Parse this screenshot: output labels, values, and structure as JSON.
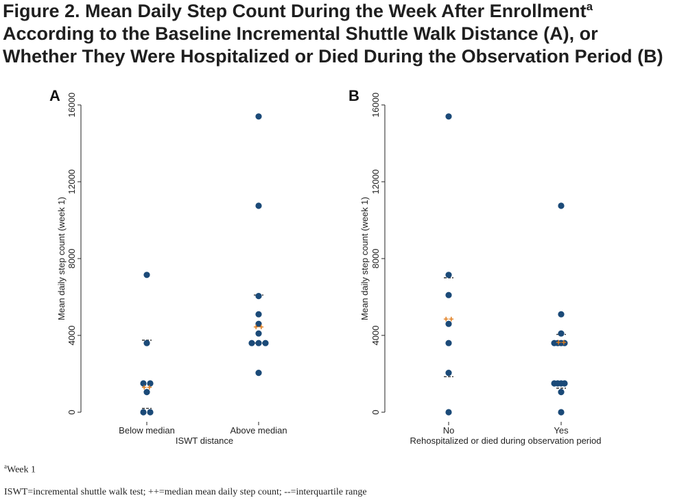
{
  "figure": {
    "title_line1": "Figure 2. Mean Daily Step Count During the Week After Enrollment",
    "title_sup": "a",
    "title_line2": "According to the Baseline Incremental Shuttle Walk Distance (A), or",
    "title_line3": "Whether They Were Hospitalized or Died During the Observation Period (B)"
  },
  "chart_data": [
    {
      "type": "scatter",
      "panel": "A",
      "xlabel": "ISWT distance",
      "ylabel": "Mean daily step count (week 1)",
      "ylim": [
        0,
        16000
      ],
      "yticks": [
        "0",
        "4000",
        "8000",
        "12000",
        "16000"
      ],
      "categories": [
        "Below median",
        "Above median"
      ],
      "points": [
        {
          "cat": 0,
          "y": 7150,
          "dx": 0
        },
        {
          "cat": 0,
          "y": 3600,
          "dx": 0
        },
        {
          "cat": 0,
          "y": 1500,
          "dx": -1
        },
        {
          "cat": 0,
          "y": 1500,
          "dx": 1
        },
        {
          "cat": 0,
          "y": 1050,
          "dx": 0
        },
        {
          "cat": 0,
          "y": 0,
          "dx": -1
        },
        {
          "cat": 0,
          "y": 0,
          "dx": 1
        },
        {
          "cat": 1,
          "y": 15400,
          "dx": 0
        },
        {
          "cat": 1,
          "y": 10750,
          "dx": 0
        },
        {
          "cat": 1,
          "y": 6050,
          "dx": 0
        },
        {
          "cat": 1,
          "y": 5100,
          "dx": 0
        },
        {
          "cat": 1,
          "y": 4600,
          "dx": 0
        },
        {
          "cat": 1,
          "y": 4100,
          "dx": 0
        },
        {
          "cat": 1,
          "y": 3600,
          "dx": -2
        },
        {
          "cat": 1,
          "y": 3600,
          "dx": 0
        },
        {
          "cat": 1,
          "y": 3600,
          "dx": 2
        },
        {
          "cat": 1,
          "y": 2050,
          "dx": 0
        }
      ],
      "medians": [
        1300,
        4450
      ],
      "iqr": [
        [
          200,
          3750
        ],
        [
          3600,
          6100
        ]
      ]
    },
    {
      "type": "scatter",
      "panel": "B",
      "xlabel": "Rehospitalized or died during observation period",
      "ylabel": "Mean daily step count (week 1)",
      "ylim": [
        0,
        16000
      ],
      "yticks": [
        "0",
        "4000",
        "8000",
        "12000",
        "16000"
      ],
      "categories": [
        "No",
        "Yes"
      ],
      "points": [
        {
          "cat": 0,
          "y": 15400,
          "dx": 0
        },
        {
          "cat": 0,
          "y": 7150,
          "dx": 0
        },
        {
          "cat": 0,
          "y": 6100,
          "dx": 0
        },
        {
          "cat": 0,
          "y": 4600,
          "dx": 0
        },
        {
          "cat": 0,
          "y": 3600,
          "dx": 0
        },
        {
          "cat": 0,
          "y": 2050,
          "dx": 0
        },
        {
          "cat": 0,
          "y": 0,
          "dx": 0
        },
        {
          "cat": 1,
          "y": 10750,
          "dx": 0
        },
        {
          "cat": 1,
          "y": 5100,
          "dx": 0
        },
        {
          "cat": 1,
          "y": 4100,
          "dx": 0
        },
        {
          "cat": 1,
          "y": 3600,
          "dx": -2
        },
        {
          "cat": 1,
          "y": 3600,
          "dx": -1
        },
        {
          "cat": 1,
          "y": 3600,
          "dx": 0
        },
        {
          "cat": 1,
          "y": 3600,
          "dx": 1
        },
        {
          "cat": 1,
          "y": 1500,
          "dx": -2
        },
        {
          "cat": 1,
          "y": 1500,
          "dx": -1
        },
        {
          "cat": 1,
          "y": 1500,
          "dx": 0
        },
        {
          "cat": 1,
          "y": 1500,
          "dx": 1
        },
        {
          "cat": 1,
          "y": 1050,
          "dx": 0
        },
        {
          "cat": 1,
          "y": 0,
          "dx": 0
        }
      ],
      "medians": [
        4850,
        3650
      ],
      "iqr": [
        [
          1850,
          7000
        ],
        [
          1250,
          4050
        ]
      ]
    }
  ],
  "footnotes": {
    "week_sup": "a",
    "week": "Week 1",
    "abbrev": "ISWT=incremental shuttle walk test; ++=median mean daily step count; --=interquartile range"
  },
  "colors": {
    "point": "#1b4a78",
    "median": "#e07b1a",
    "iqr": "#333333",
    "axis": "#222222"
  }
}
